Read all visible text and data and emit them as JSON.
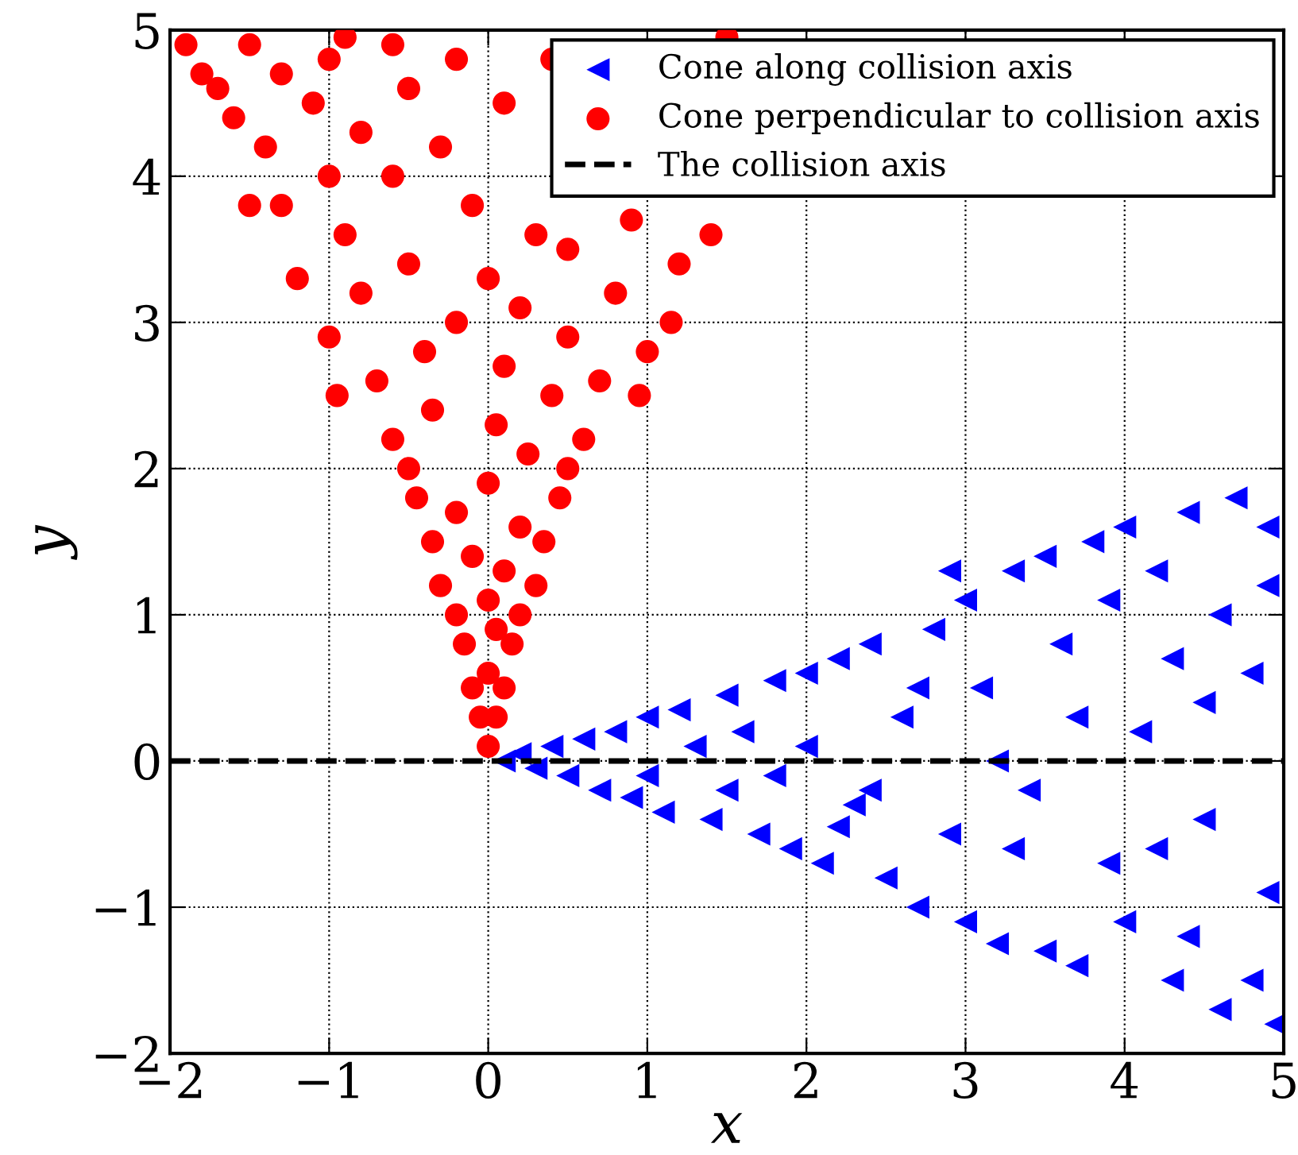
{
  "chart_data": {
    "type": "scatter",
    "xlabel": "x",
    "ylabel": "y",
    "xlim": [
      -2,
      5
    ],
    "ylim": [
      -2,
      5
    ],
    "xticks": [
      {
        "value": -2,
        "label": "−2"
      },
      {
        "value": -1,
        "label": "−1"
      },
      0,
      1,
      2,
      3,
      4,
      5
    ],
    "yticks": [
      {
        "value": -2,
        "label": "−2"
      },
      {
        "value": -1,
        "label": "−1"
      },
      0,
      1,
      2,
      3,
      4,
      5
    ],
    "grid": true,
    "legend": "top right",
    "series": [
      {
        "name": "Cone along collision axis",
        "marker": "triangle",
        "color": "#0000ff",
        "x": [
          0.1,
          0.2,
          0.3,
          0.4,
          0.5,
          0.6,
          0.7,
          0.8,
          0.9,
          1.0,
          1.0,
          1.1,
          1.2,
          1.3,
          1.4,
          1.5,
          1.5,
          1.6,
          1.7,
          1.8,
          1.9,
          2.0,
          2.0,
          2.1,
          2.2,
          2.3,
          2.4,
          2.5,
          2.6,
          2.7,
          2.8,
          2.9,
          3.0,
          3.0,
          3.1,
          3.2,
          3.3,
          3.4,
          3.5,
          3.5,
          3.6,
          3.7,
          3.8,
          3.9,
          4.0,
          4.0,
          4.1,
          4.2,
          4.3,
          4.4,
          4.5,
          4.6,
          4.7,
          4.8,
          4.8,
          4.9,
          4.95,
          4.6,
          3.2,
          2.7,
          3.7,
          4.3,
          4.2,
          3.3,
          2.4,
          1.8,
          4.9,
          4.5,
          3.9,
          4.4,
          2.2,
          2.9,
          4.9
        ],
        "values": [
          0.0,
          0.05,
          -0.05,
          0.1,
          -0.1,
          0.15,
          -0.2,
          0.2,
          -0.25,
          0.3,
          -0.1,
          -0.35,
          0.35,
          0.1,
          -0.4,
          0.45,
          -0.2,
          0.2,
          -0.5,
          0.55,
          -0.6,
          0.6,
          0.1,
          -0.7,
          0.7,
          -0.3,
          0.8,
          -0.8,
          0.3,
          -1.0,
          0.9,
          -0.5,
          1.1,
          -1.1,
          0.5,
          -1.25,
          1.3,
          -0.2,
          1.4,
          -1.3,
          0.8,
          -1.4,
          1.5,
          -0.7,
          1.6,
          -1.1,
          0.2,
          1.3,
          -1.5,
          1.7,
          -0.4,
          -1.7,
          1.8,
          0.6,
          -1.5,
          1.2,
          -1.8,
          1.0,
          0.0,
          0.5,
          0.3,
          0.7,
          -0.6,
          -0.6,
          -0.2,
          -0.1,
          -0.9,
          0.4,
          1.1,
          -1.2,
          -0.45,
          1.3,
          1.6
        ]
      },
      {
        "name": "Cone perpendicular to collision axis",
        "marker": "circle",
        "color": "#ff0000",
        "x": [
          0,
          0.05,
          -0.05,
          0.1,
          -0.1,
          0,
          0.15,
          -0.15,
          0.05,
          -0.2,
          0.2,
          0,
          0.3,
          -0.3,
          0.1,
          -0.1,
          0.35,
          -0.35,
          0.2,
          -0.2,
          0.45,
          -0.45,
          0,
          0.5,
          -0.5,
          0.25,
          -0.6,
          0.6,
          0.05,
          -0.35,
          0.4,
          -0.7,
          0.7,
          0.95,
          -0.95,
          0.1,
          -0.4,
          0.5,
          1.0,
          -1.0,
          -0.2,
          0.2,
          0.8,
          -0.8,
          1.15,
          0,
          -0.5,
          0.5,
          1.2,
          -1.2,
          -1.3,
          -0.9,
          0.3,
          0.9,
          -0.1,
          -0.6,
          -1.0,
          -1.5,
          1.4,
          -0.3,
          -1.4,
          -0.8,
          0.1,
          -1.6,
          -1.1,
          -0.5,
          -1.7,
          -1.3,
          -0.2,
          -1.9,
          -1.5,
          -1.0,
          -0.6,
          0.4,
          1.5,
          -1.8,
          -0.9
        ],
        "values": [
          0.1,
          0.3,
          0.3,
          0.5,
          0.5,
          0.6,
          0.8,
          0.8,
          0.9,
          1.0,
          1.0,
          1.1,
          1.2,
          1.2,
          1.3,
          1.4,
          1.5,
          1.5,
          1.6,
          1.7,
          1.8,
          1.8,
          1.9,
          2.0,
          2.0,
          2.1,
          2.2,
          2.2,
          2.3,
          2.4,
          2.5,
          2.6,
          2.6,
          2.5,
          2.5,
          2.7,
          2.8,
          2.9,
          2.8,
          2.9,
          3.0,
          3.1,
          3.2,
          3.2,
          3.0,
          3.3,
          3.4,
          3.5,
          3.4,
          3.3,
          3.8,
          3.6,
          3.6,
          3.7,
          3.8,
          4.0,
          4.0,
          3.8,
          3.6,
          4.2,
          4.2,
          4.3,
          4.5,
          4.4,
          4.5,
          4.6,
          4.6,
          4.7,
          4.8,
          4.9,
          4.9,
          4.8,
          4.9,
          4.8,
          4.95,
          4.7,
          4.95
        ]
      },
      {
        "name": "The collision axis",
        "type": "line",
        "line_style": "dashed",
        "marker": "none",
        "color": "#000000",
        "x": [
          -2,
          5
        ],
        "values": [
          0,
          0
        ]
      }
    ]
  }
}
